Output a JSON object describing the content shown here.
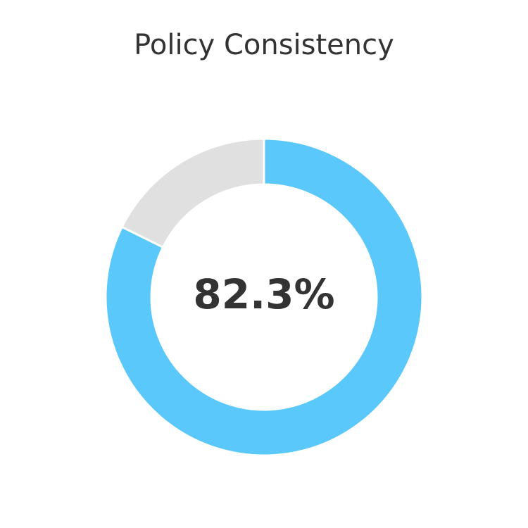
{
  "chart_data": {
    "type": "pie",
    "title": "Policy Consistency",
    "center_label": "82.3%",
    "slices": [
      {
        "value": 82.3,
        "color": "#5bc8fb"
      },
      {
        "value": 17.7,
        "color": "#e0e0e0"
      }
    ],
    "colors": {
      "title_text": "#333333",
      "center_text": "#333333",
      "separator": "#ffffff"
    }
  }
}
